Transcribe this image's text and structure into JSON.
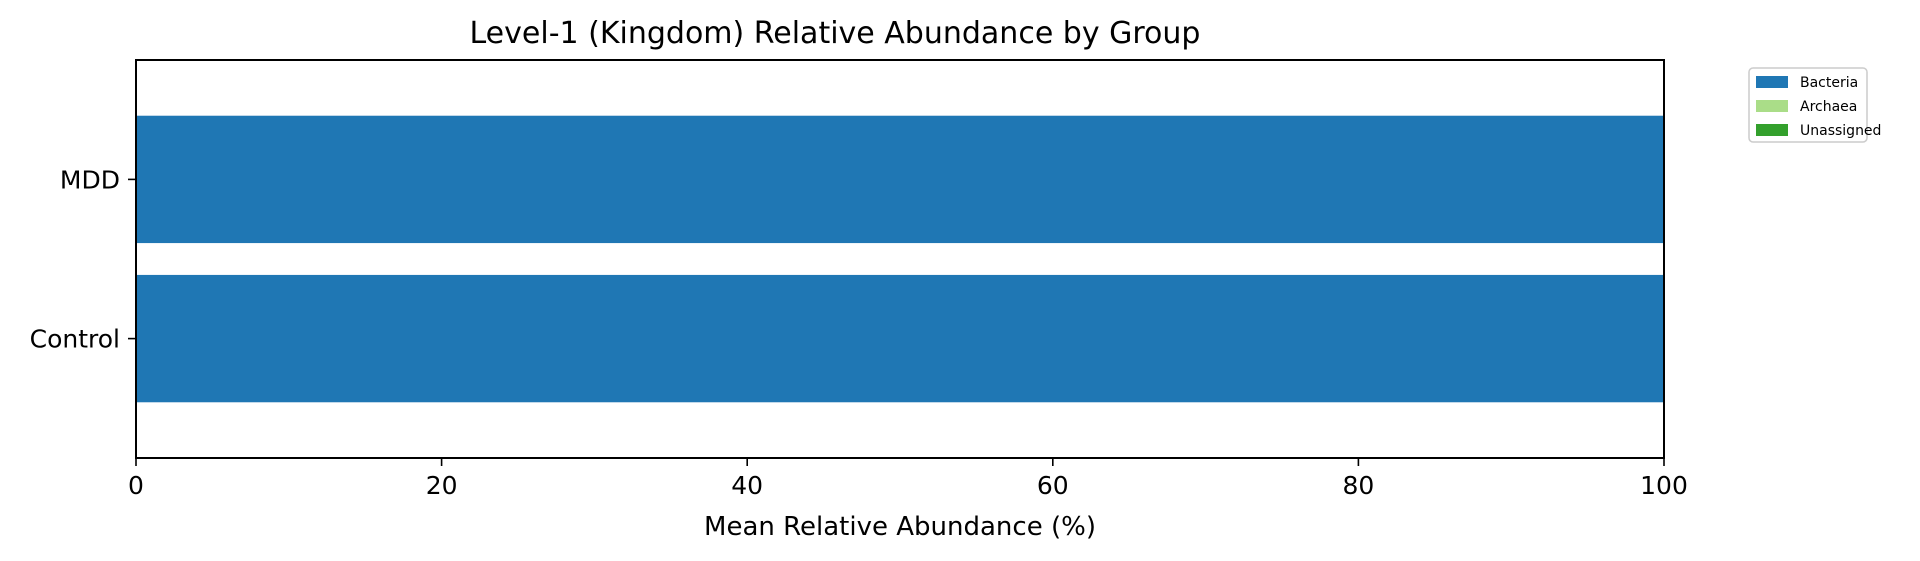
{
  "chart_data": {
    "type": "bar",
    "orientation": "horizontal",
    "stacked": true,
    "title": "Level-1 (Kingdom) Relative Abundance by Group",
    "xlabel": "Mean Relative Abundance (%)",
    "ylabel": "",
    "xlim": [
      0,
      100
    ],
    "xticks": [
      0,
      20,
      40,
      60,
      80,
      100
    ],
    "categories": [
      "Control",
      "MDD"
    ],
    "series": [
      {
        "name": "Bacteria",
        "color": "#1f77b4",
        "values": [
          100,
          100
        ]
      },
      {
        "name": "Archaea",
        "color": "#aadd88",
        "values": [
          0,
          0
        ]
      },
      {
        "name": "Unassigned",
        "color": "#33a02c",
        "values": [
          0,
          0
        ]
      }
    ],
    "grid": false,
    "legend": "outside top-right"
  }
}
